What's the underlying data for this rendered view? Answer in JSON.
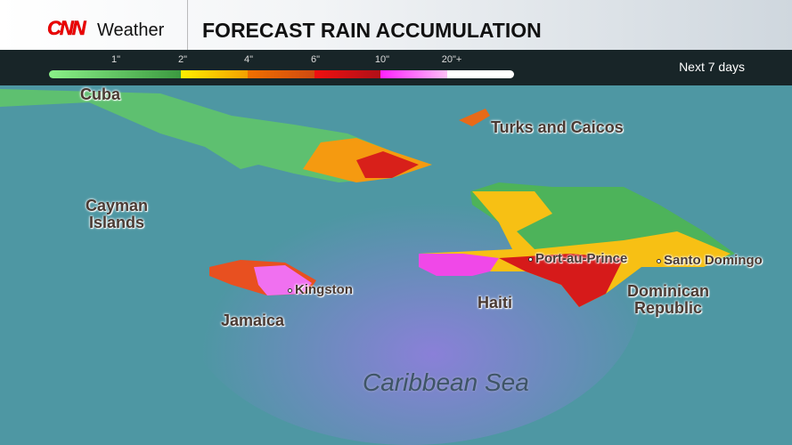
{
  "header": {
    "brand_logo": "CNN",
    "brand": "Weather",
    "title": "FORECAST RAIN ACCUMULATION"
  },
  "legend": {
    "ticks": [
      "1\"",
      "2\"",
      "4\"",
      "6\"",
      "10\"",
      "20\"+"
    ],
    "period": "Next 7 days",
    "colors": {
      "green": "#7fe07a",
      "yellow": "#ffe600",
      "orange": "#f07000",
      "red": "#e01010",
      "magenta": "#ff40ff",
      "white": "#ffffff"
    }
  },
  "map": {
    "labels": {
      "cuba": "Cuba",
      "turks": "Turks and Caicos",
      "cayman": "Cayman Islands",
      "jamaica": "Jamaica",
      "kingston": "Kingston",
      "haiti": "Haiti",
      "port_au_prince": "Port-au-Prince",
      "santo_domingo": "Santo Domingo",
      "dominican": "Dominican Republic",
      "sea": "Caribbean Sea"
    }
  }
}
